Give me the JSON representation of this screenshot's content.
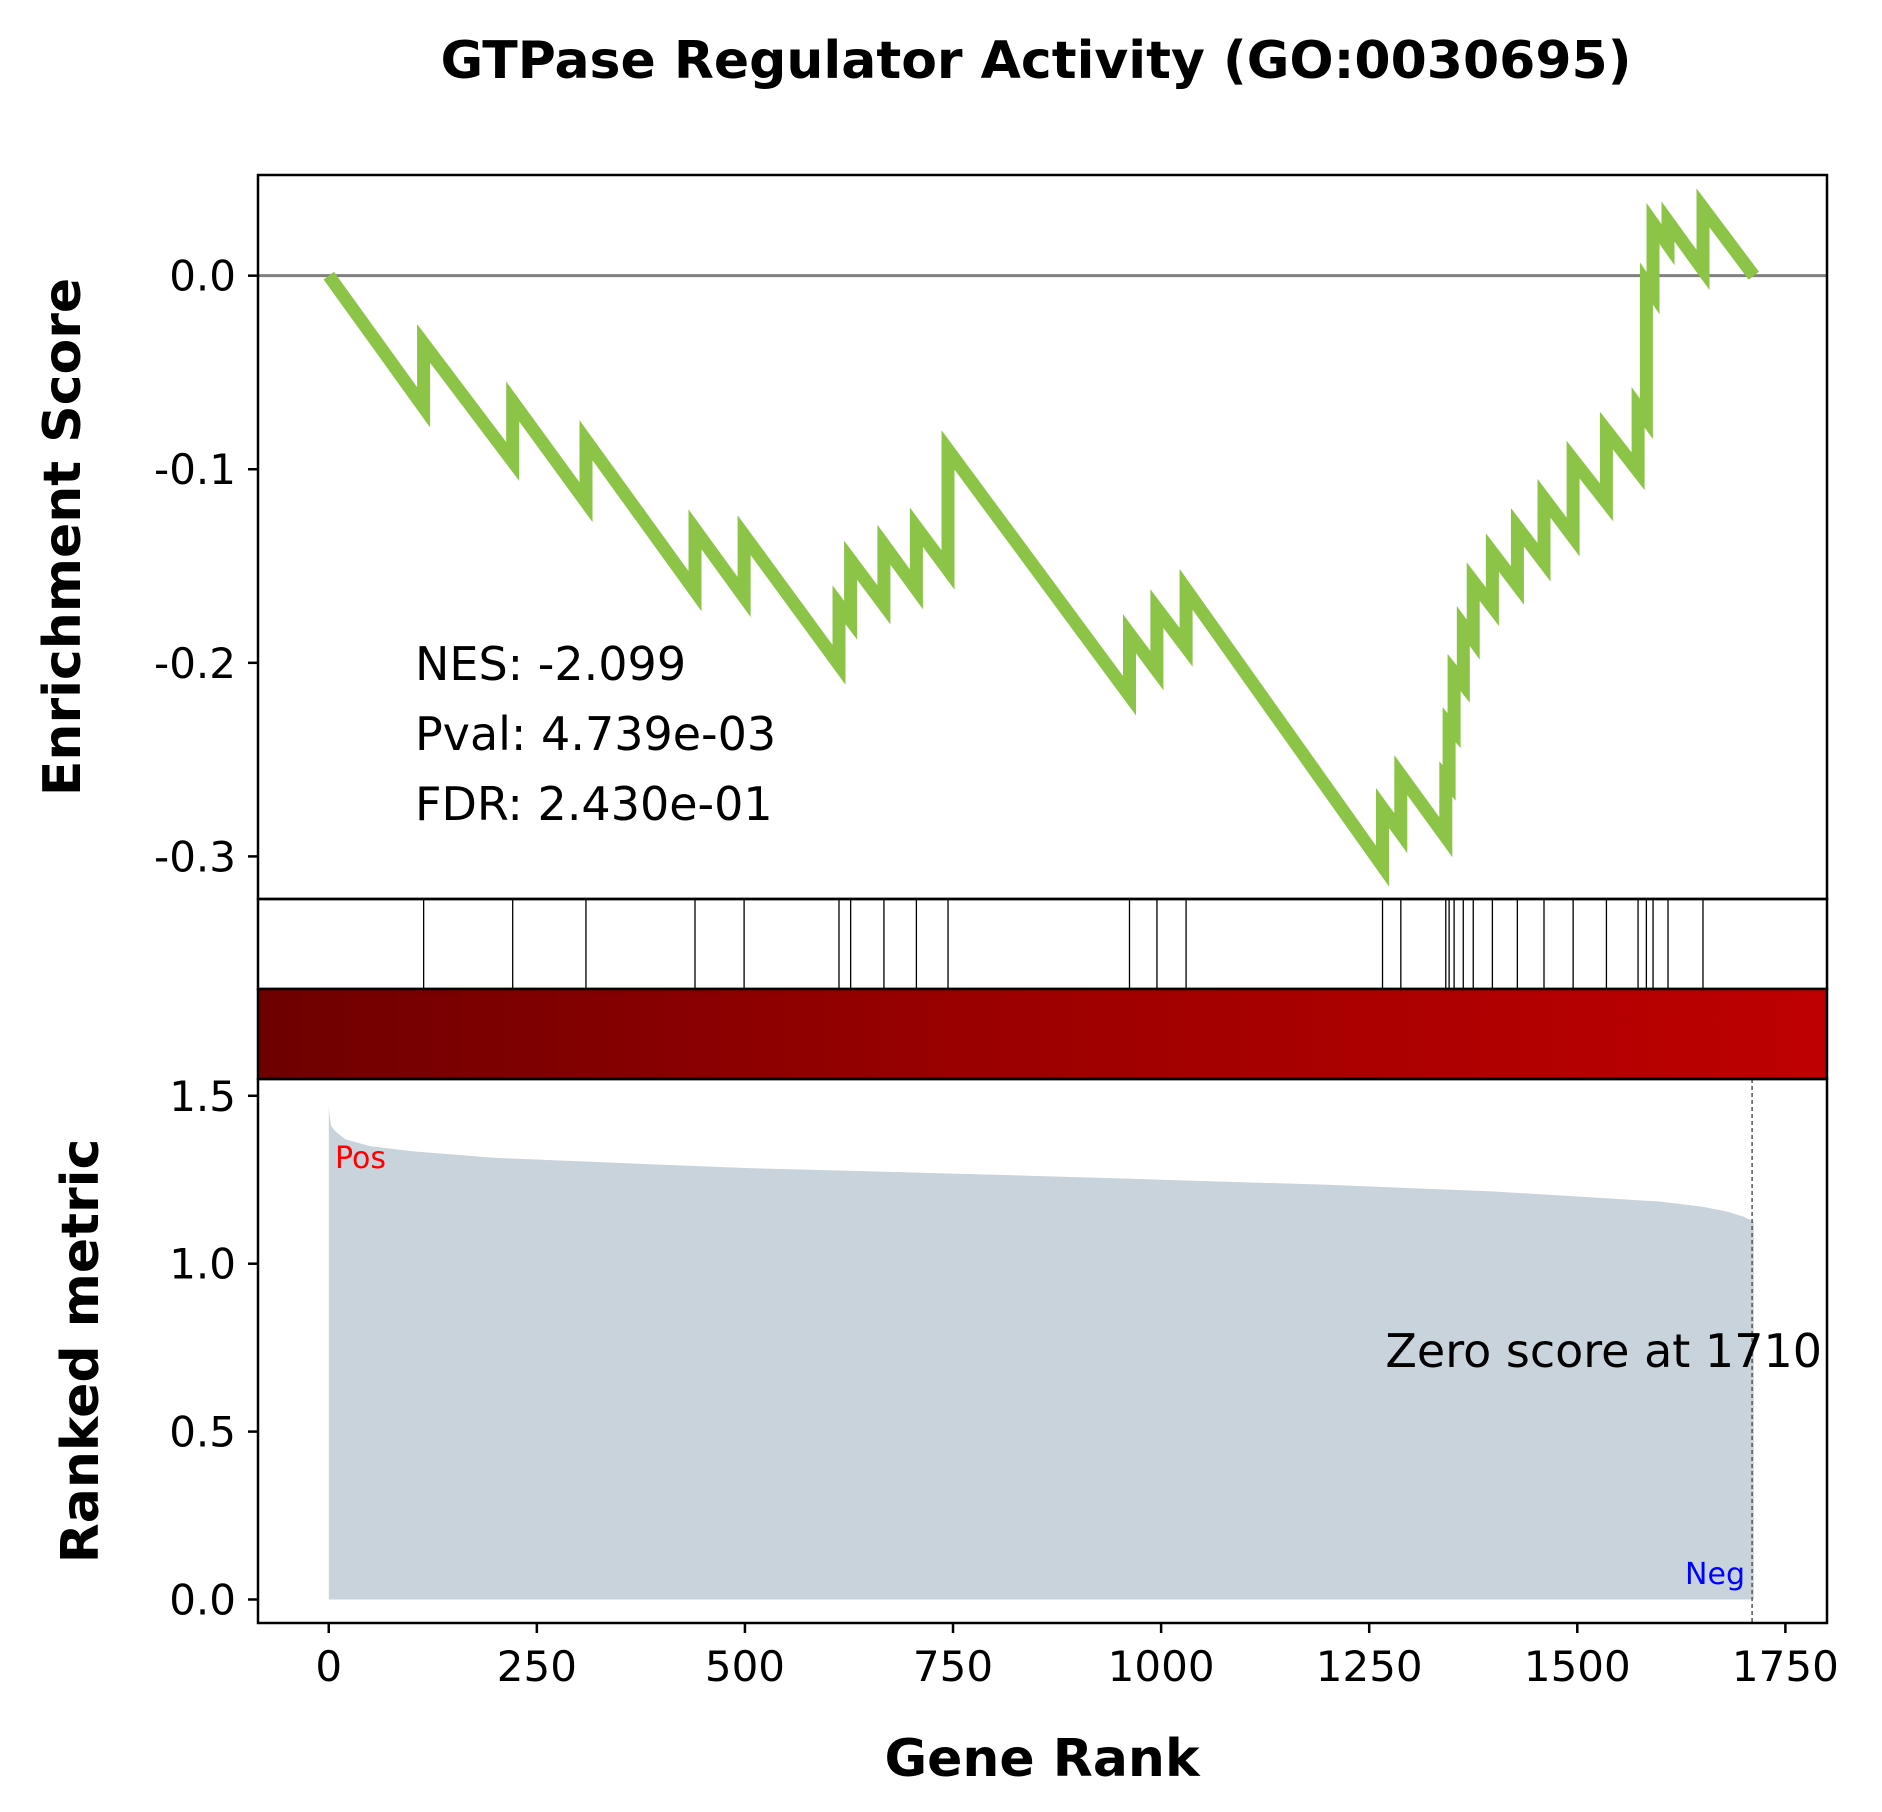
{
  "chart_data": {
    "type": "line",
    "title": "GTPase Regulator Activity (GO:0030695)",
    "xlabel": "Gene Rank",
    "es_ylabel": "Enrichment Score",
    "metric_ylabel": "Ranked metric",
    "xlim": [
      -85,
      1800
    ],
    "x_ticks": [
      "0",
      "250",
      "500",
      "750",
      "1000",
      "1250",
      "1500",
      "1750"
    ],
    "es_ylim": [
      -0.322,
      0.052
    ],
    "es_ticks": [
      "0.0",
      "-0.1",
      "-0.2",
      "-0.3"
    ],
    "metric_ylim": [
      -0.07,
      1.55
    ],
    "metric_ticks": [
      "0.0",
      "0.5",
      "1.0",
      "1.5"
    ],
    "stats": {
      "nes": "NES: -2.099",
      "pval": "Pval: 4.739e-03",
      "fdr": "FDR: 2.430e-01"
    },
    "zero_score_label": "Zero score at 1710",
    "zero_score_rank": 1710,
    "pos_label": "Pos",
    "neg_label": "Neg",
    "total_genes": 1712,
    "hit_ranks": [
      114,
      221,
      309,
      440,
      499,
      613,
      627,
      667,
      706,
      744,
      962,
      995,
      1030,
      1266,
      1288,
      1342,
      1346,
      1352,
      1363,
      1375,
      1398,
      1428,
      1460,
      1495,
      1535,
      1573,
      1583,
      1591,
      1609,
      1651
    ],
    "running_es": {
      "x": [
        0,
        114,
        114,
        221,
        221,
        309,
        309,
        440,
        440,
        499,
        499,
        613,
        613,
        627,
        627,
        667,
        667,
        706,
        706,
        744,
        744,
        962,
        962,
        995,
        995,
        1030,
        1030,
        1266,
        1266,
        1288,
        1288,
        1342,
        1342,
        1346,
        1346,
        1352,
        1352,
        1363,
        1363,
        1375,
        1375,
        1398,
        1398,
        1428,
        1428,
        1460,
        1460,
        1495,
        1495,
        1535,
        1535,
        1573,
        1573,
        1583,
        1583,
        1591,
        1591,
        1609,
        1609,
        1651,
        1651,
        1712
      ],
      "y": [
        0.0,
        -0.068,
        -0.035,
        -0.096,
        -0.065,
        -0.117,
        -0.085,
        -0.163,
        -0.131,
        -0.166,
        -0.134,
        -0.201,
        -0.17,
        -0.178,
        -0.147,
        -0.17,
        -0.139,
        -0.162,
        -0.13,
        -0.152,
        -0.09,
        -0.217,
        -0.185,
        -0.204,
        -0.172,
        -0.192,
        -0.162,
        -0.305,
        -0.275,
        -0.288,
        -0.258,
        -0.29,
        -0.26,
        -0.262,
        -0.232,
        -0.235,
        -0.205,
        -0.211,
        -0.181,
        -0.188,
        -0.158,
        -0.171,
        -0.143,
        -0.16,
        -0.13,
        -0.148,
        -0.115,
        -0.135,
        -0.095,
        -0.117,
        -0.08,
        -0.101,
        -0.068,
        -0.074,
        -0.004,
        -0.009,
        0.027,
        0.016,
        0.028,
        0.003,
        0.035,
        0.0
      ]
    },
    "ranked_metric": {
      "x": [
        0,
        1,
        3,
        6,
        10,
        20,
        50,
        100,
        200,
        300,
        500,
        800,
        1000,
        1200,
        1400,
        1500,
        1600,
        1650,
        1680,
        1700,
        1712
      ],
      "y": [
        1.47,
        1.44,
        1.41,
        1.4,
        1.39,
        1.37,
        1.35,
        1.335,
        1.315,
        1.305,
        1.285,
        1.265,
        1.25,
        1.235,
        1.215,
        1.2,
        1.185,
        1.17,
        1.155,
        1.14,
        1.125
      ]
    },
    "colors": {
      "es_line": "#8bc446",
      "zero_line": "#808080",
      "metric_fill": "#c8d3dc",
      "pos": "#ff0000",
      "neg": "#0000ff",
      "bar_left": "#6e0000",
      "bar_mid": "#9a0000",
      "bar_right": "#be0000"
    }
  }
}
